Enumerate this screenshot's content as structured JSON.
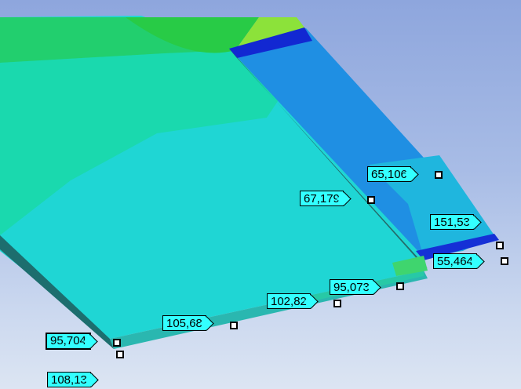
{
  "colors": {
    "background_top": "#8ea6dd",
    "background_bottom": "#dce5f3",
    "label_fill": "#33ffff",
    "label_border": "#000000",
    "contour_green": "#1ccf5d",
    "contour_light_green": "#5fe23c",
    "contour_teal": "#19d9b5",
    "contour_cyan": "#1fd3d6",
    "contour_blue": "#1e7ee0",
    "contour_dark_blue": "#1020d8"
  },
  "probes": [
    {
      "value": "65,106"
    },
    {
      "value": "67,179"
    },
    {
      "value": "151,53"
    },
    {
      "value": "55,464"
    },
    {
      "value": "95,073"
    },
    {
      "value": "102,82"
    },
    {
      "value": "105,68"
    },
    {
      "value": "95,704"
    },
    {
      "value": "108,13"
    }
  ]
}
